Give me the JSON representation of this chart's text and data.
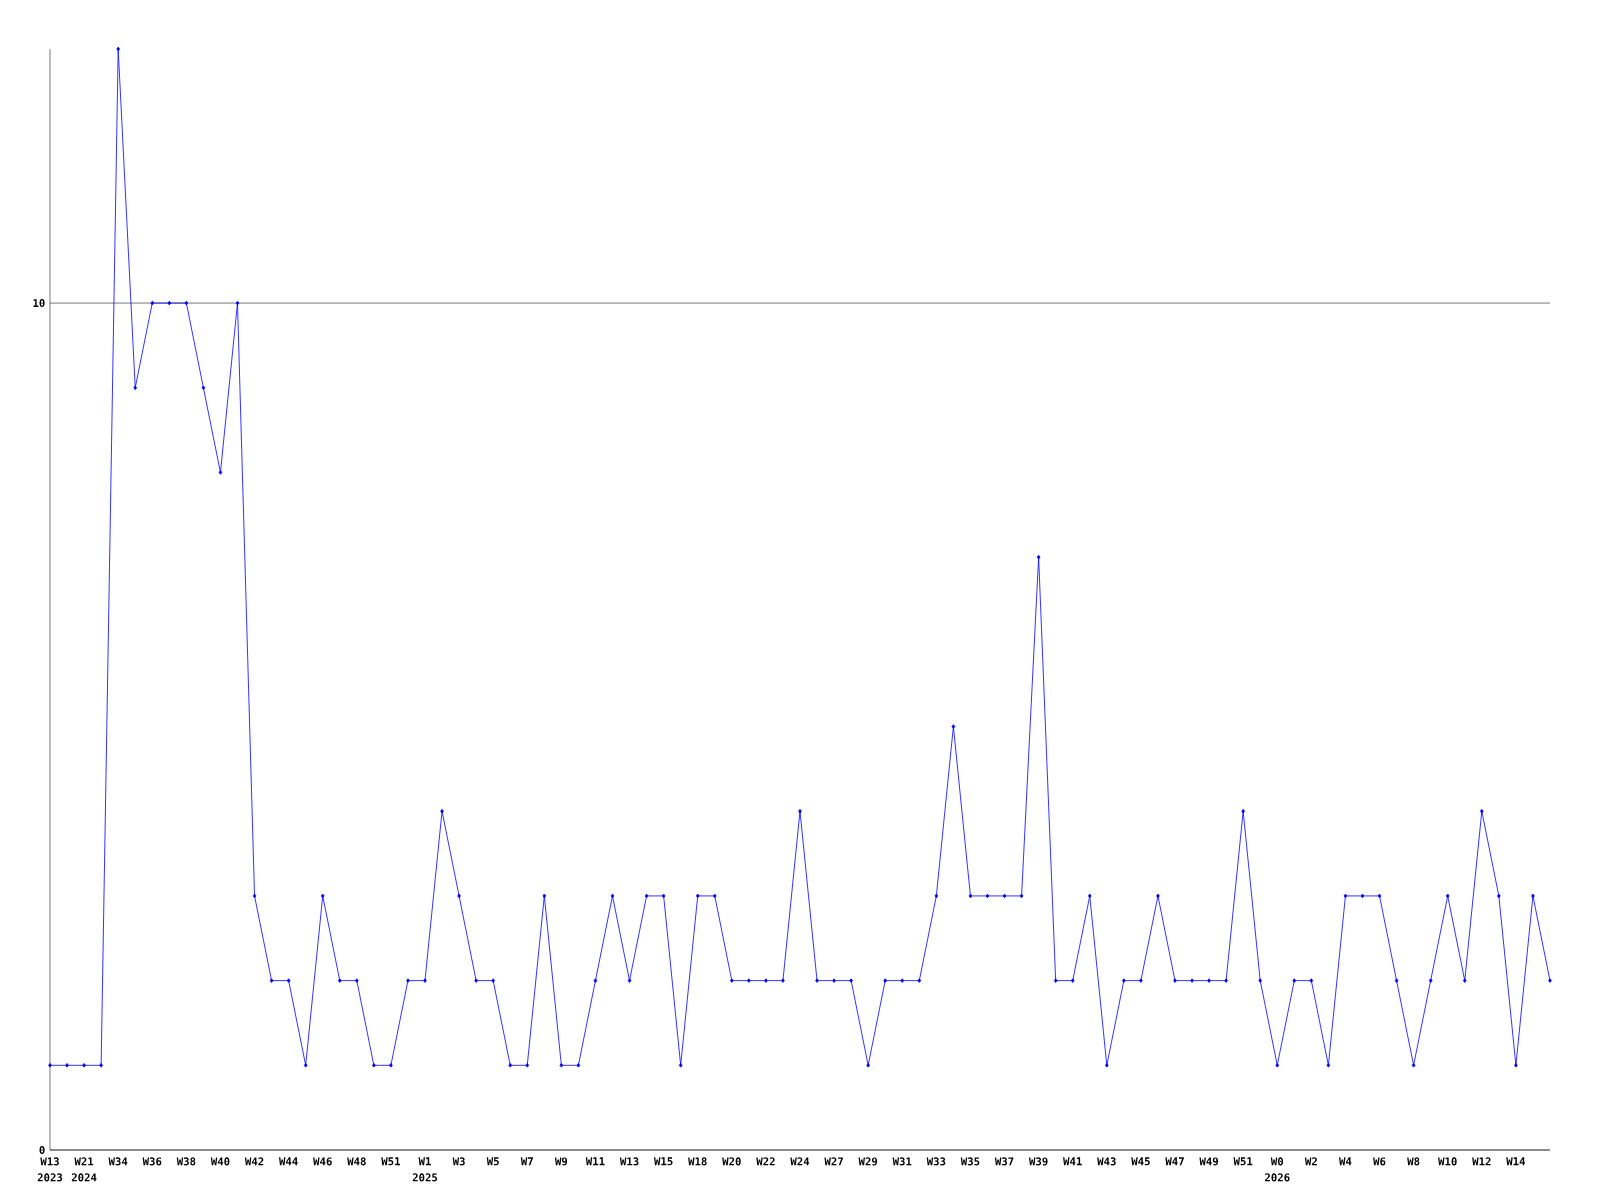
{
  "chart_data": {
    "type": "line",
    "categories": [
      "W13",
      null,
      "W21",
      null,
      "W34",
      null,
      "W36",
      null,
      "W38",
      null,
      "W40",
      null,
      "W42",
      null,
      "W44",
      null,
      "W46",
      null,
      "W48",
      null,
      "W51",
      null,
      "W1",
      null,
      "W3",
      null,
      "W5",
      null,
      "W7",
      null,
      "W9",
      null,
      "W11",
      null,
      "W13",
      null,
      "W15",
      null,
      "W18",
      null,
      "W20",
      null,
      "W22",
      null,
      "W24",
      null,
      "W27",
      null,
      "W29",
      null,
      "W31",
      null,
      "W33",
      null,
      "W35",
      null,
      "W37",
      null,
      "W39",
      null,
      "W41",
      null,
      "W43",
      null,
      "W45",
      null,
      "W47",
      null,
      "W49",
      null,
      "W51",
      null,
      "W0",
      null,
      "W2",
      null,
      "W4",
      null,
      "W6",
      null,
      "W8",
      null,
      "W10",
      null,
      "W12",
      null,
      "W14",
      null,
      null
    ],
    "values": [
      1,
      1,
      1,
      1,
      13,
      9,
      10,
      10,
      10,
      9,
      8,
      10,
      3,
      2,
      2,
      1,
      3,
      2,
      2,
      1,
      1,
      2,
      2,
      4,
      3,
      2,
      2,
      1,
      1,
      3,
      1,
      1,
      2,
      3,
      2,
      3,
      3,
      1,
      3,
      3,
      2,
      2,
      2,
      2,
      4,
      2,
      2,
      2,
      1,
      2,
      2,
      2,
      3,
      5,
      3,
      3,
      3,
      3,
      7,
      2,
      2,
      3,
      1,
      2,
      2,
      3,
      2,
      2,
      2,
      2,
      4,
      2,
      1,
      2,
      2,
      1,
      3,
      3,
      3,
      2,
      1,
      2,
      3,
      2,
      4,
      3,
      1,
      3,
      2
    ],
    "color": "#0000ff",
    "marker": "diamond",
    "grid": "y",
    "ylim": [
      0,
      13
    ],
    "yticks": [
      0,
      10
    ],
    "annotations": [
      "2023",
      "2024",
      "2025",
      "2026"
    ]
  }
}
